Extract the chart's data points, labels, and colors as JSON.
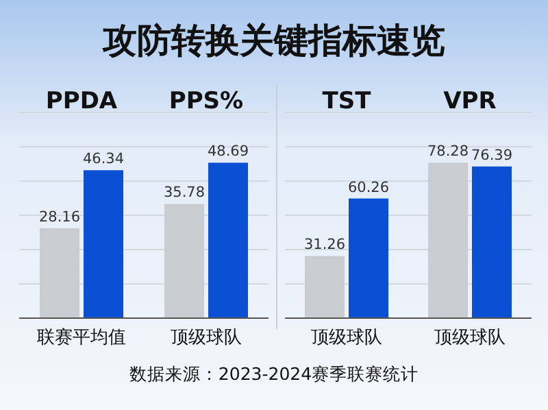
{
  "chart_data": [
    {
      "type": "bar",
      "title": "攻防转换关键指标速览",
      "categories": [
        "PPDA",
        "PPS%"
      ],
      "series": [
        {
          "color": "#c9ccd1",
          "values": [
            28.16,
            35.78
          ]
        },
        {
          "color": "#0b4fd3",
          "values": [
            46.34,
            48.69
          ]
        }
      ],
      "data_labels": true,
      "grid": "y",
      "annotations": [
        "联赛平均值",
        "顶级球队",
        "数据来源：2023-2024赛季联赛统计"
      ]
    },
    {
      "type": "bar",
      "categories": [
        "TST",
        "VPR"
      ],
      "series": [
        {
          "color": "#c9ccd1",
          "values": [
            31.26,
            78.28
          ]
        },
        {
          "color": "#0b4fd3",
          "values": [
            60.26,
            76.39
          ]
        }
      ],
      "data_labels": true,
      "grid": "y",
      "annotations": [
        "顶级球队",
        "顶级球队"
      ]
    }
  ]
}
